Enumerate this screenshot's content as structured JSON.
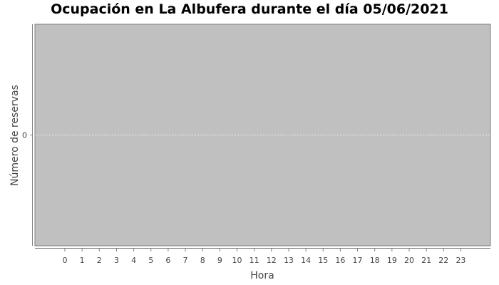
{
  "chart_data": {
    "type": "bar",
    "title": "Ocupación en La Albufera durante el día 05/06/2021",
    "xlabel": "Hora",
    "ylabel": "Número de reservas",
    "categories": [
      "0",
      "1",
      "2",
      "3",
      "4",
      "5",
      "6",
      "7",
      "8",
      "9",
      "10",
      "11",
      "12",
      "13",
      "14",
      "15",
      "16",
      "17",
      "18",
      "19",
      "20",
      "21",
      "22",
      "23"
    ],
    "values": [
      0,
      0,
      0,
      0,
      0,
      0,
      0,
      0,
      0,
      0,
      0,
      0,
      0,
      0,
      0,
      0,
      0,
      0,
      0,
      0,
      0,
      0,
      0,
      0
    ],
    "y_ticks": [
      "0"
    ],
    "grid": true,
    "legend": "none"
  },
  "colors": {
    "plot_background": "#c0c0c0",
    "gridline": "#ffffff",
    "axis": "#808080"
  }
}
